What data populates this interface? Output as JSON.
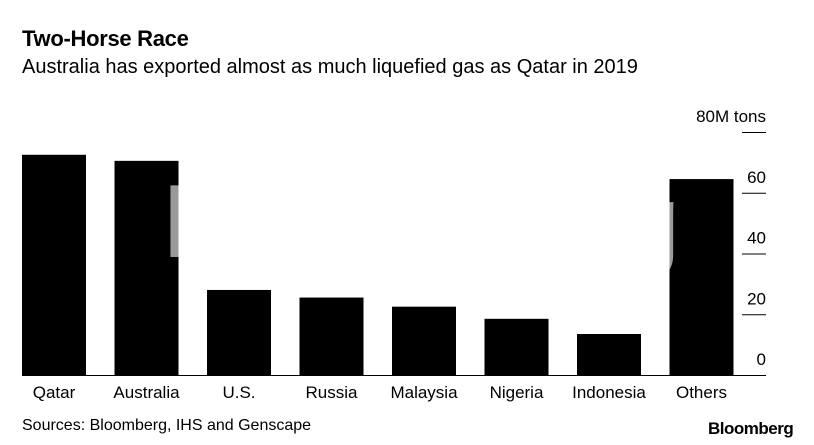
{
  "title": "Two-Horse Race",
  "subtitle": "Australia has exported almost as much liquefied gas as Qatar in 2019",
  "source": "Sources: Bloomberg, IHS and Genscape",
  "logo": "Bloomberg",
  "watermark": "Bloomberg",
  "colors": {
    "bar": "#000000",
    "axis": "#000000",
    "background": "#ffffff"
  },
  "chart_data": {
    "type": "bar",
    "title": "Two-Horse Race",
    "subtitle": "Australia has exported almost as much liquefied gas as Qatar in 2019",
    "categories": [
      "Qatar",
      "Australia",
      "U.S.",
      "Russia",
      "Malaysia",
      "Nigeria",
      "Indonesia",
      "Others"
    ],
    "values": [
      72.5,
      70.5,
      28,
      25.5,
      22.5,
      18.5,
      13.5,
      64.5
    ],
    "ylabel": "",
    "yunit": "M tons",
    "ylim": [
      0,
      80
    ],
    "yticks": [
      0,
      20,
      40,
      60,
      80
    ],
    "ytick_labels": [
      "0",
      "20",
      "40",
      "60",
      "80M tons"
    ],
    "yaxis_position": "right",
    "grid": false,
    "legend": "none"
  }
}
